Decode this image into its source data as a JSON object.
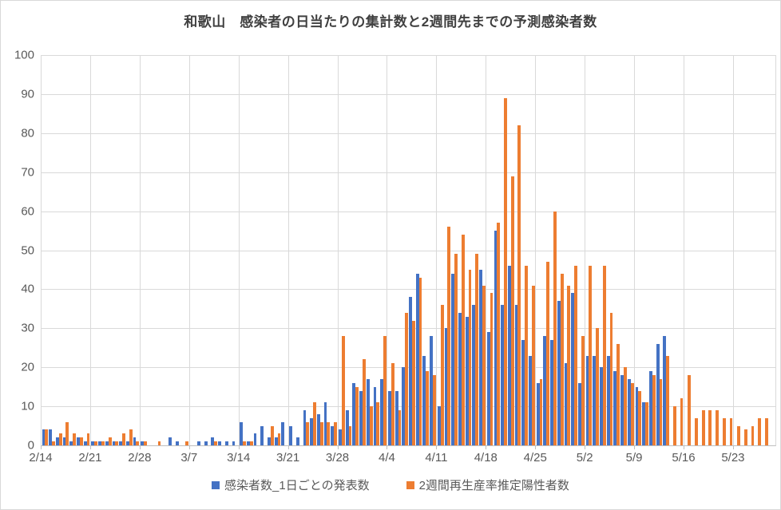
{
  "title": "和歌山　感染者の日当たりの集計数と2週間先までの予測感染者数",
  "legend": [
    {
      "label": "感染者数_1日ごとの発表数",
      "color": "#4472C4"
    },
    {
      "label": "2週間再生産率推定陽性者数",
      "color": "#ED7D31"
    }
  ],
  "colors": {
    "blue": "#4472C4",
    "orange": "#ED7D31",
    "gridline": "#D9D9D9",
    "axis_line": "#BFBFBF",
    "axis_text": "#595959",
    "title_text": "#404040",
    "background": "#FFFFFF"
  },
  "chart_data": {
    "type": "bar",
    "title": "和歌山　感染者の日当たりの集計数と2週間先までの予測感染者数",
    "xlabel": "",
    "ylabel": "",
    "ylim": [
      0,
      100
    ],
    "y_ticks": [
      0,
      10,
      20,
      30,
      40,
      50,
      60,
      70,
      80,
      90,
      100
    ],
    "grid": "horizontal and weekly vertical, light gray",
    "legend_position": "bottom",
    "x_tick_labels": [
      "2/14",
      "2/21",
      "2/28",
      "3/7",
      "3/14",
      "3/21",
      "3/28",
      "4/4",
      "4/11",
      "4/18",
      "4/25",
      "5/2",
      "5/9",
      "5/16",
      "5/23"
    ],
    "x_tick_interval_days": 7,
    "right_pad_slots": 1,
    "categories": [
      "2/14",
      "2/15",
      "2/16",
      "2/17",
      "2/18",
      "2/19",
      "2/20",
      "2/21",
      "2/22",
      "2/23",
      "2/24",
      "2/25",
      "2/26",
      "2/27",
      "2/28",
      "3/1",
      "3/2",
      "3/3",
      "3/4",
      "3/5",
      "3/6",
      "3/7",
      "3/8",
      "3/9",
      "3/10",
      "3/11",
      "3/12",
      "3/13",
      "3/14",
      "3/15",
      "3/16",
      "3/17",
      "3/18",
      "3/19",
      "3/20",
      "3/21",
      "3/22",
      "3/23",
      "3/24",
      "3/25",
      "3/26",
      "3/27",
      "3/28",
      "3/29",
      "3/30",
      "3/31",
      "4/1",
      "4/2",
      "4/3",
      "4/4",
      "4/5",
      "4/6",
      "4/7",
      "4/8",
      "4/9",
      "4/10",
      "4/11",
      "4/12",
      "4/13",
      "4/14",
      "4/15",
      "4/16",
      "4/17",
      "4/18",
      "4/19",
      "4/20",
      "4/21",
      "4/22",
      "4/23",
      "4/24",
      "4/25",
      "4/26",
      "4/27",
      "4/28",
      "4/29",
      "4/30",
      "5/1",
      "5/2",
      "5/3",
      "5/4",
      "5/5",
      "5/6",
      "5/7",
      "5/8",
      "5/9",
      "5/10",
      "5/11",
      "5/12",
      "5/13",
      "5/14",
      "5/15",
      "5/16",
      "5/17",
      "5/18",
      "5/19",
      "5/20",
      "5/21",
      "5/22",
      "5/23",
      "5/24",
      "5/25",
      "5/26",
      "5/27"
    ],
    "series": [
      {
        "name": "感染者数_1日ごとの発表数",
        "color": "#4472C4",
        "values": [
          4,
          4,
          2,
          2,
          1,
          2,
          1,
          1,
          1,
          1,
          1,
          1,
          1,
          2,
          1,
          0,
          0,
          0,
          2,
          1,
          0,
          0,
          1,
          1,
          2,
          1,
          1,
          1,
          6,
          1,
          3,
          5,
          2,
          2,
          6,
          5,
          2,
          9,
          7,
          8,
          11,
          5,
          4,
          9,
          16,
          14,
          17,
          15,
          17,
          14,
          14,
          20,
          38,
          44,
          23,
          28,
          10,
          30,
          44,
          34,
          33,
          36,
          45,
          29,
          55,
          36,
          46,
          36,
          27,
          23,
          16,
          28,
          27,
          37,
          21,
          39,
          16,
          23,
          23,
          20,
          23,
          19,
          18,
          17,
          15,
          11,
          19,
          26,
          28,
          0,
          0,
          0,
          0,
          0,
          0,
          0,
          0,
          0,
          0,
          0,
          0,
          0,
          0
        ]
      },
      {
        "name": "2週間再生産率推定陽性者数",
        "color": "#ED7D31",
        "values": [
          4,
          1,
          3,
          6,
          3,
          2,
          3,
          1,
          1,
          2,
          1,
          3,
          4,
          1,
          1,
          0,
          1,
          0,
          0,
          0,
          1,
          0,
          0,
          0,
          1,
          0,
          0,
          0,
          1,
          1,
          0,
          0,
          5,
          3,
          0,
          0,
          0,
          6,
          11,
          6,
          6,
          6,
          28,
          5,
          15,
          22,
          10,
          11,
          28,
          21,
          9,
          34,
          32,
          43,
          19,
          18,
          36,
          56,
          49,
          54,
          45,
          49,
          41,
          39,
          57,
          89,
          69,
          82,
          46,
          41,
          17,
          47,
          60,
          44,
          41,
          46,
          28,
          46,
          30,
          46,
          34,
          26,
          20,
          16,
          14,
          11,
          18,
          17,
          23,
          10,
          12,
          18,
          7,
          9,
          9,
          9,
          7,
          7,
          5,
          4,
          5,
          7,
          7
        ]
      }
    ]
  }
}
